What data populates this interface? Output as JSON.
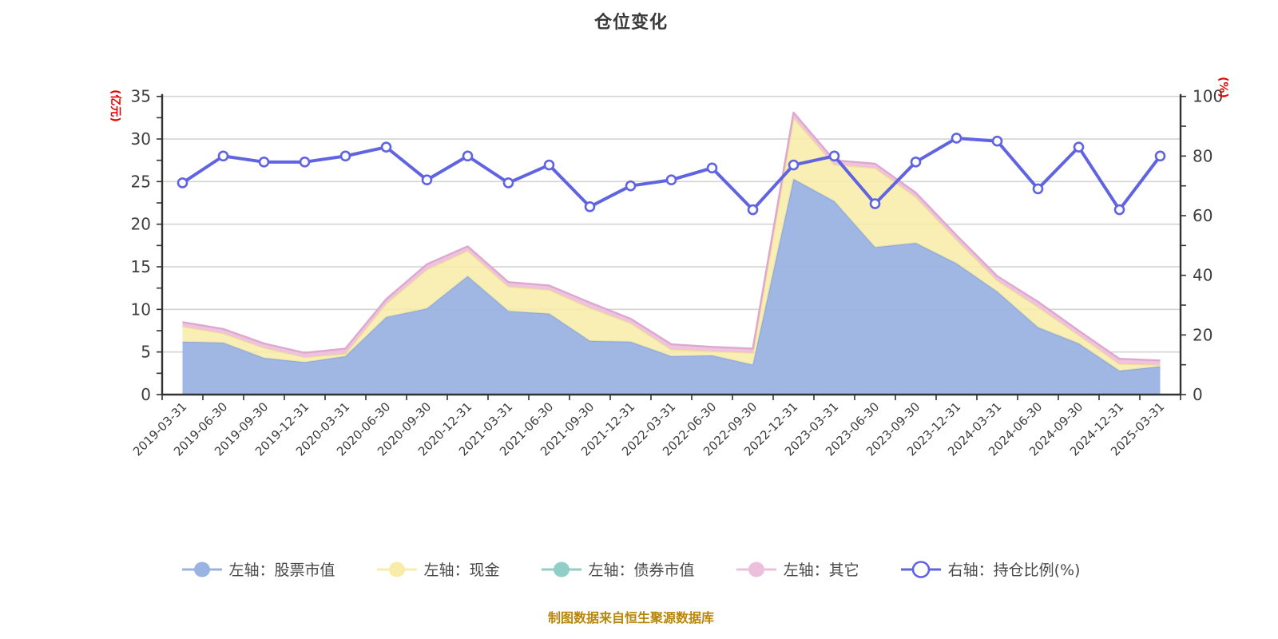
{
  "figure": {
    "title": "仓位变化",
    "source_note": "制图数据来自恒生聚源数据库"
  },
  "colors": {
    "title_text": "#3a3a3a",
    "axis_line": "#333333",
    "tick_label": "#3d3d3d",
    "grid_line": "#d4d4d4",
    "axis_unit_label": "#e60000",
    "source_note": "#b8860b",
    "legend_text": "#4a4a4a",
    "stock_fill": "#9bb3e2",
    "stock_edge": "#8fa9dc",
    "cash_fill": "#f8eca8",
    "cash_edge": "#f0df93",
    "bond_fill": "#90cec8",
    "bond_edge": "#7ec4bd",
    "other_fill": "#ecc0dc",
    "other_edge": "#dfa7d0",
    "ratio_line": "#6064e0",
    "marker_fill": "#ffffff"
  },
  "chart_data": {
    "type": "area",
    "subtype": "stacked-area-with-line-overlay",
    "title": "仓位变化",
    "grid": true,
    "legend_position": "bottom",
    "categories": [
      "2019-03-31",
      "2019-06-30",
      "2019-09-30",
      "2019-12-31",
      "2020-03-31",
      "2020-06-30",
      "2020-09-30",
      "2020-12-31",
      "2021-03-31",
      "2021-06-30",
      "2021-09-30",
      "2021-12-31",
      "2022-03-31",
      "2022-06-30",
      "2022-09-30",
      "2022-12-31",
      "2023-03-31",
      "2023-06-30",
      "2023-09-30",
      "2023-12-31",
      "2024-03-31",
      "2024-06-30",
      "2024-09-30",
      "2024-12-31",
      "2025-03-31"
    ],
    "left_axis": {
      "label": "(亿元)",
      "min": 0,
      "max": 35,
      "ticks": [
        0,
        5,
        10,
        15,
        20,
        25,
        30,
        35
      ],
      "minor_step": 2.5
    },
    "right_axis": {
      "label": "(%)",
      "min": 0,
      "max": 100,
      "ticks": [
        0,
        20,
        40,
        60,
        80,
        100
      ],
      "minor_step": 10
    },
    "series": [
      {
        "name": "左轴：股票市值",
        "axis": "left",
        "kind": "area",
        "color_key": "stock",
        "values": [
          6.2,
          6.1,
          4.3,
          3.8,
          4.5,
          9.1,
          10.1,
          13.9,
          9.8,
          9.5,
          6.3,
          6.2,
          4.5,
          4.6,
          3.5,
          25.3,
          22.7,
          17.3,
          17.8,
          15.4,
          12.1,
          7.9,
          6.0,
          2.8,
          3.3
        ]
      },
      {
        "name": "左轴：现金",
        "axis": "left",
        "kind": "area",
        "color_key": "cash",
        "values": [
          1.8,
          1.1,
          1.2,
          0.6,
          0.3,
          1.6,
          4.6,
          3.0,
          2.9,
          2.8,
          3.9,
          2.2,
          0.8,
          0.5,
          1.4,
          7.2,
          4.3,
          9.3,
          5.4,
          2.8,
          1.3,
          2.4,
          1.0,
          0.8,
          0.2
        ]
      },
      {
        "name": "左轴：债券市值",
        "axis": "left",
        "kind": "area",
        "color_key": "bond",
        "values": [
          0,
          0,
          0,
          0,
          0,
          0,
          0,
          0,
          0,
          0,
          0,
          0,
          0,
          0,
          0,
          0,
          0,
          0,
          0,
          0,
          0,
          0,
          0,
          0,
          0
        ]
      },
      {
        "name": "左轴：其它",
        "axis": "left",
        "kind": "area",
        "color_key": "other",
        "values": [
          0.5,
          0.5,
          0.5,
          0.5,
          0.6,
          0.5,
          0.6,
          0.5,
          0.5,
          0.5,
          0.6,
          0.5,
          0.6,
          0.5,
          0.5,
          0.6,
          0.5,
          0.5,
          0.5,
          0.5,
          0.5,
          0.6,
          0.5,
          0.6,
          0.5
        ]
      },
      {
        "name": "右轴：持仓比例(%)",
        "axis": "right",
        "kind": "line",
        "color_key": "ratio",
        "values": [
          71,
          80,
          78,
          78,
          80,
          83,
          72,
          80,
          71,
          77,
          63,
          70,
          72,
          76,
          62,
          77,
          80,
          64,
          78,
          86,
          85,
          69,
          83,
          62,
          80
        ]
      }
    ]
  }
}
